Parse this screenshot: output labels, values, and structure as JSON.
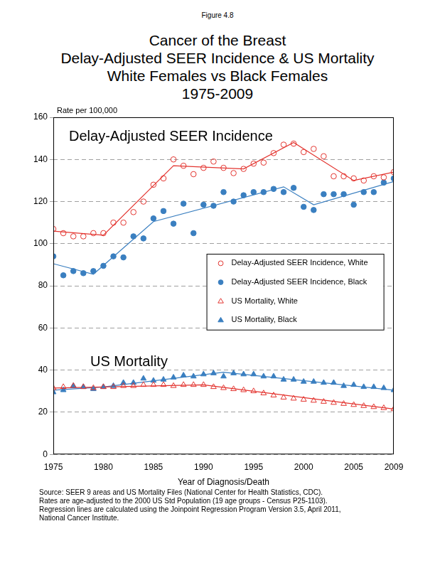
{
  "chart_data": {
    "type": "scatter",
    "figure": "Figure 4.8",
    "title": [
      "Cancer of the Breast",
      "Delay-Adjusted SEER Incidence & US Mortality",
      "White Females vs Black Females",
      "1975-2009"
    ],
    "y_label": "Rate per 100,000",
    "x_label": "Year of Diagnosis/Death",
    "annotations": [
      "Delay-Adjusted SEER Incidence",
      "US Mortality"
    ],
    "source": [
      "Source: SEER 9 areas and US Mortality Files (National Center for Health Statistics, CDC).",
      "Rates are age-adjusted to the 2000 US Std Population (19 age groups - Census P25-1103).",
      "Regression lines are calculated using the Joinpoint Regression Program Version 3.5, April 2011,",
      "National Cancer Institute."
    ],
    "x": [
      1975,
      1976,
      1977,
      1978,
      1979,
      1980,
      1981,
      1982,
      1983,
      1984,
      1985,
      1986,
      1987,
      1988,
      1989,
      1990,
      1991,
      1992,
      1993,
      1994,
      1995,
      1996,
      1997,
      1998,
      1999,
      2000,
      2001,
      2002,
      2003,
      2004,
      2005,
      2006,
      2007,
      2008,
      2009
    ],
    "series": [
      {
        "name": "Delay-Adjusted SEER Incidence, White",
        "color": "#e3342f",
        "marker": "circle-open",
        "values": [
          107,
          105,
          103.5,
          103.5,
          105,
          105,
          110,
          110,
          115,
          120,
          128,
          131,
          140,
          137,
          133,
          136,
          139,
          136,
          133.5,
          135.5,
          138,
          138.5,
          143,
          147,
          147.5,
          143.5,
          145,
          141.5,
          132,
          132,
          131,
          130,
          132,
          131.5,
          134
        ],
        "fit": {
          "x": [
            1975,
            1980,
            1987,
            1994,
            1999,
            2005,
            2009
          ],
          "values": [
            106,
            104,
            137,
            135.5,
            148,
            130,
            134
          ]
        }
      },
      {
        "name": "Delay-Adjusted SEER Incidence, Black",
        "color": "#3a7fc0",
        "marker": "circle",
        "values": [
          94,
          85,
          87,
          86,
          87,
          89.5,
          94,
          93.5,
          103.5,
          102.5,
          112,
          115.5,
          109.5,
          119,
          105,
          118.5,
          118,
          124.5,
          120,
          123,
          124.5,
          124.5,
          126,
          124.5,
          126.5,
          117.5,
          116,
          123.5,
          123.5,
          123.5,
          118.5,
          124.5,
          124.5,
          129,
          131
        ],
        "fit": {
          "x": [
            1975,
            1979,
            1985,
            1998,
            2001,
            2009
          ],
          "values": [
            90.5,
            85.5,
            110.5,
            127,
            118.5,
            129.5
          ]
        }
      },
      {
        "name": "US Mortality, White",
        "color": "#e3342f",
        "marker": "triangle-open",
        "values": [
          31.5,
          32,
          32.5,
          32,
          31.5,
          32,
          32,
          32.5,
          32.5,
          33,
          33,
          33,
          32.5,
          33,
          33,
          33,
          32,
          31.5,
          31,
          30.5,
          30,
          29,
          28,
          27,
          26.5,
          26,
          25.5,
          25,
          24.5,
          24,
          23.5,
          23,
          22.5,
          22,
          21.5
        ],
        "fit": {
          "x": [
            1975,
            1980,
            1990,
            1995,
            2009
          ],
          "values": [
            31.5,
            32,
            33,
            30,
            21.5
          ]
        }
      },
      {
        "name": "US Mortality, Black",
        "color": "#3a7fc0",
        "marker": "triangle",
        "values": [
          29.5,
          30.5,
          32.5,
          32,
          31,
          32,
          32.5,
          34,
          34,
          36,
          35,
          35.5,
          36.5,
          37.5,
          37,
          38,
          38.5,
          37,
          38.5,
          38,
          38,
          37,
          37,
          35.5,
          35.5,
          34.5,
          34.5,
          34,
          34,
          32.5,
          33,
          32,
          32,
          31.5,
          30.5
        ],
        "fit": {
          "x": [
            1975,
            1980,
            1992,
            2009
          ],
          "values": [
            30.5,
            32,
            39,
            30.5
          ]
        }
      }
    ],
    "xlim": [
      1975,
      2009
    ],
    "xticks": [
      1975,
      1980,
      1985,
      1990,
      1995,
      2000,
      2005,
      2009
    ],
    "ylim": [
      0,
      160
    ],
    "yticks": [
      0,
      20,
      40,
      60,
      80,
      100,
      120,
      140,
      160
    ],
    "grid": true,
    "legend": "right"
  }
}
